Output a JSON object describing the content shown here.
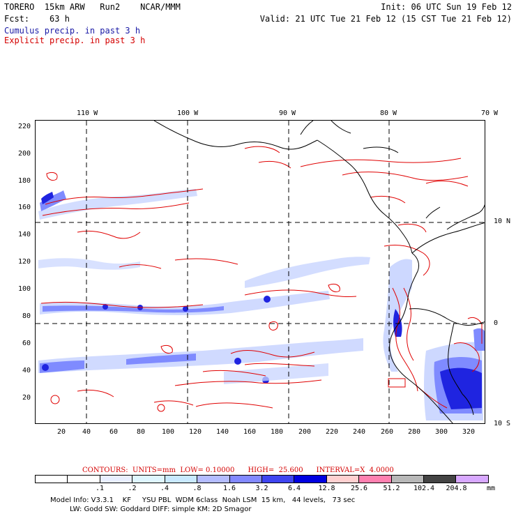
{
  "header": {
    "line1_left": "TORERO  15km ARW   Run2    NCAR/MMM",
    "line1_right": "Init: 06 UTC Sun 19 Feb 12",
    "line2_left": "Fcst:    63 h",
    "line2_right": "Valid: 21 UTC Tue 21 Feb 12 (15 CST Tue 21 Feb 12)",
    "line3": "Cumulus precip. in past 3 h",
    "line4": "Explicit precip. in past 3 h"
  },
  "map": {
    "top_lon_labels": [
      "110 W",
      "100 W",
      "90 W",
      "80 W",
      "70 W"
    ],
    "right_lat_labels": [
      "10 N",
      "0",
      "10 S"
    ],
    "left_grid_labels": [
      "220",
      "200",
      "180",
      "160",
      "140",
      "120",
      "100",
      "80",
      "60",
      "40",
      "20"
    ],
    "bottom_grid_labels": [
      "20",
      "40",
      "60",
      "80",
      "100",
      "120",
      "140",
      "160",
      "180",
      "200",
      "220",
      "240",
      "260",
      "280",
      "300",
      "320"
    ],
    "contour_colors": {
      "explicit": "#e00000",
      "cumulus_light": "#c8d4ff",
      "cumulus_mid": "#7f8bff",
      "cumulus_dark": "#1f24e0",
      "coast": "#000000"
    }
  },
  "legend": {
    "contours_line": "CONTOURS:  UNITS=mm  LOW= 0.10000      HIGH=  25.600      INTERVAL=X  4.0000",
    "colorbar_values": [
      ".1",
      ".2",
      ".4",
      ".8",
      "1.6",
      "3.2",
      "6.4",
      "12.8",
      "25.6",
      "51.2",
      "102.4",
      "204.8"
    ],
    "unit": "mm",
    "colorbar_colors": [
      "#ffffff",
      "#ffffff",
      "#e9efff",
      "#dff6ff",
      "#c9e9ff",
      "#b4bcff",
      "#8289ff",
      "#3f45f0",
      "#0000e0",
      "#ffd0d0",
      "#ff80b0",
      "#b8b8b8",
      "#444444",
      "#d8a8ff"
    ]
  },
  "footer": {
    "line1": "Model Info: V3.3.1    KF     YSU PBL  WDM 6class  Noah LSM  15 km,   44 levels,   73 sec",
    "line2": "LW: Godd SW: Goddard DIFF: simple KM: 2D Smagor"
  }
}
